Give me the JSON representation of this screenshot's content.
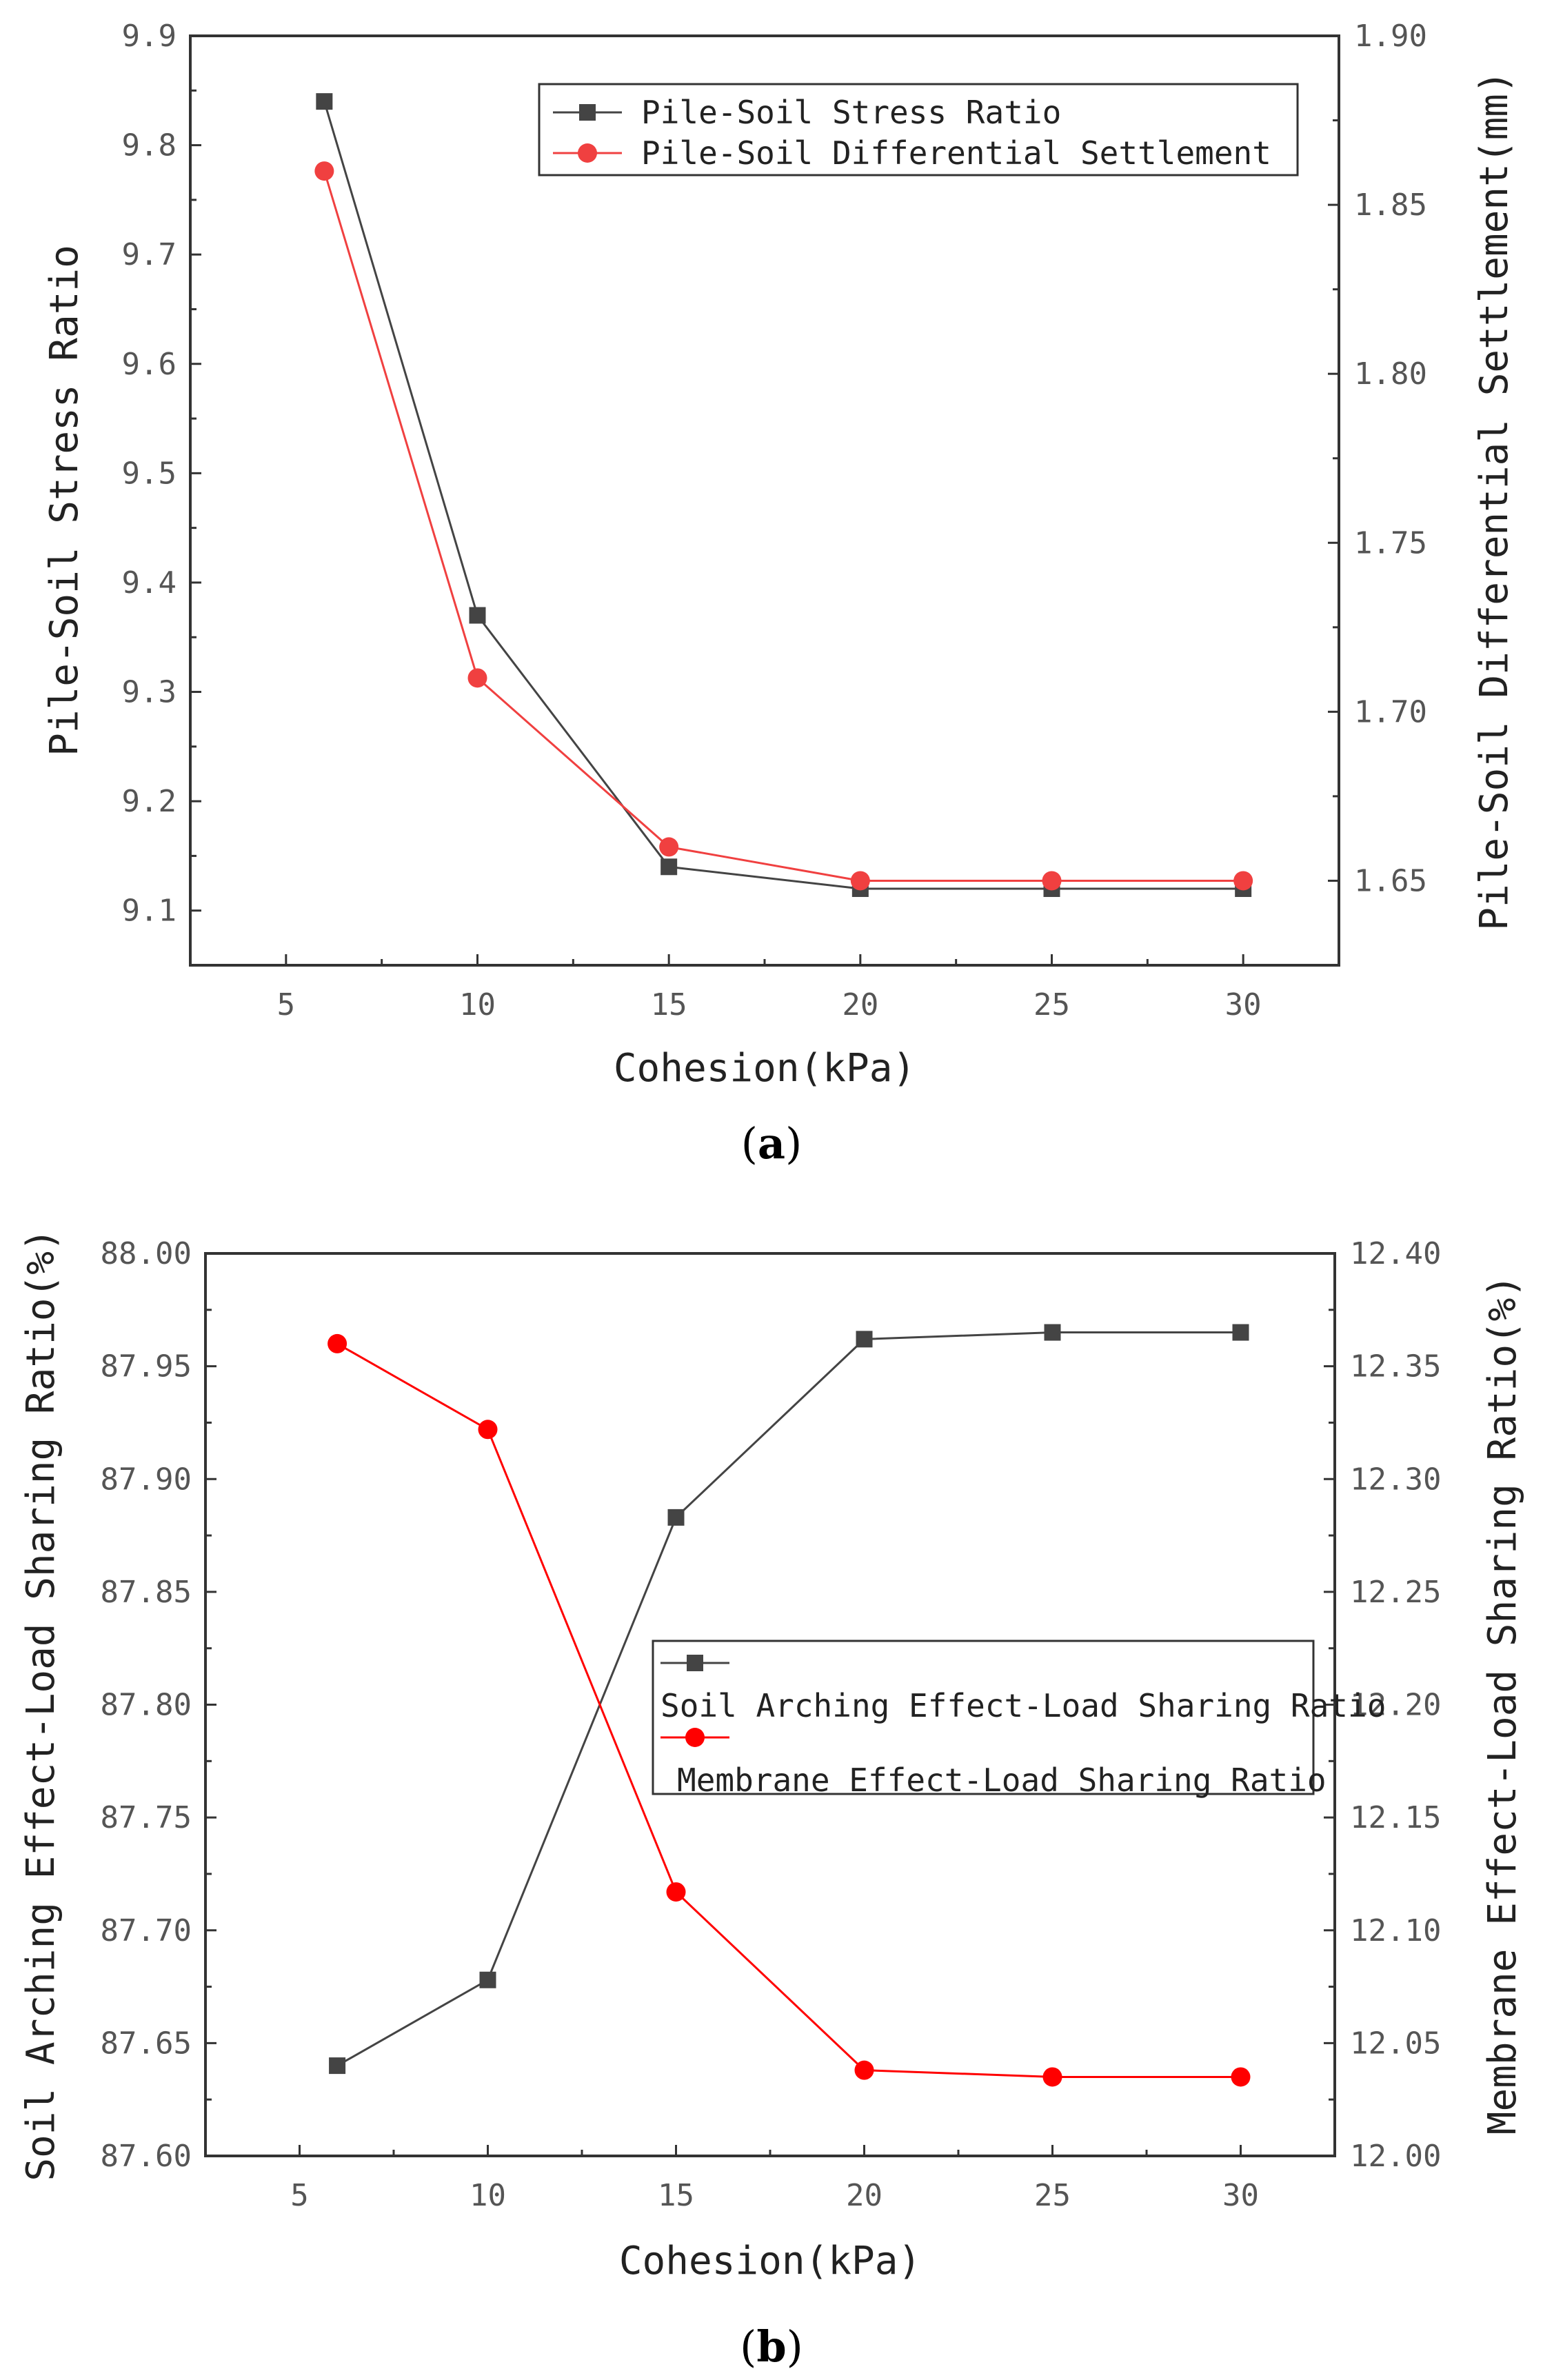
{
  "chart_data": [
    {
      "panel": "a",
      "type": "line",
      "panel_label": {
        "open": "(",
        "letter": "a",
        "close": ")"
      },
      "xlabel": "Cohesion(kPa)",
      "ylabel_left": "Pile-Soil Stress Ratio",
      "ylabel_right": "Pile-Soil Differential Settlement(mm)",
      "x_ticks": [
        5,
        10,
        15,
        20,
        25,
        30
      ],
      "x_tick_labels": [
        "5",
        "10",
        "15",
        "20",
        "25",
        "30"
      ],
      "xlim": [
        2.5,
        32.5
      ],
      "ylim_left": [
        9.05,
        9.9
      ],
      "ylim_right": [
        1.625,
        1.9
      ],
      "y_ticks_left": [
        "9.1",
        "9.2",
        "9.3",
        "9.4",
        "9.5",
        "9.6",
        "9.7",
        "9.8",
        "9.9"
      ],
      "y_ticks_right": [
        "1.65",
        "1.70",
        "1.75",
        "1.80",
        "1.85",
        "1.90"
      ],
      "x": [
        6,
        10,
        15,
        20,
        25,
        30
      ],
      "legend_position": "top-right",
      "series": [
        {
          "name": "Pile-Soil Stress Ratio",
          "axis": "left",
          "marker": "square",
          "color": "#444444",
          "values": [
            9.84,
            9.37,
            9.14,
            9.12,
            9.12,
            9.12
          ]
        },
        {
          "name": "Pile-Soil Differential Settlement",
          "axis": "right",
          "marker": "circle",
          "color": "#f04040",
          "values": [
            1.86,
            1.71,
            1.66,
            1.65,
            1.65,
            1.65
          ]
        }
      ]
    },
    {
      "panel": "b",
      "type": "line",
      "panel_label": {
        "open": "(",
        "letter": "b",
        "close": ")"
      },
      "xlabel": "Cohesion(kPa)",
      "ylabel_left": "Soil Arching Effect-Load Sharing Ratio(%)",
      "ylabel_right": "Membrane Effect-Load Sharing Ratio(%)",
      "x_ticks": [
        5,
        10,
        15,
        20,
        25,
        30
      ],
      "x_tick_labels": [
        "5",
        "10",
        "15",
        "20",
        "25",
        "30"
      ],
      "xlim": [
        2.5,
        32.5
      ],
      "ylim_left": [
        87.6,
        88.0
      ],
      "ylim_right": [
        12.0,
        12.4
      ],
      "y_ticks_left": [
        "87.60",
        "87.65",
        "87.70",
        "87.75",
        "87.80",
        "87.85",
        "87.90",
        "87.95",
        "88.00"
      ],
      "y_ticks_right": [
        "12.00",
        "12.05",
        "12.10",
        "12.15",
        "12.20",
        "12.25",
        "12.30",
        "12.35",
        "12.40"
      ],
      "x": [
        6,
        10,
        15,
        20,
        25,
        30
      ],
      "legend_position": "center-right",
      "series": [
        {
          "name": "Soil Arching Effect-Load Sharing Ratio",
          "axis": "left",
          "marker": "square",
          "color": "#444444",
          "values": [
            87.64,
            87.678,
            87.883,
            87.962,
            87.965,
            87.965
          ]
        },
        {
          "name": "Membrane Effect-Load Sharing Ratio",
          "axis": "right",
          "marker": "circle",
          "color": "#ff0000",
          "values": [
            12.36,
            12.322,
            12.117,
            12.038,
            12.035,
            12.035
          ]
        }
      ]
    }
  ]
}
